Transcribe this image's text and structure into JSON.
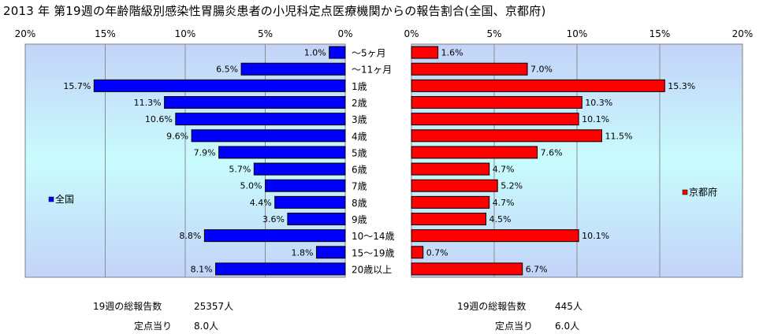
{
  "title": "2013 年 第19週の年齢階級別感染性胃腸炎患者の小児科定点医療機関からの報告割合(全国、京都府)",
  "chart_data": {
    "type": "bar",
    "categories": [
      "～5ヶ月",
      "～11ヶ月",
      "1歳",
      "2歳",
      "3歳",
      "4歳",
      "5歳",
      "6歳",
      "7歳",
      "8歳",
      "9歳",
      "10～14歳",
      "15～19歳",
      "20歳以上"
    ],
    "series": [
      {
        "name": "全国",
        "color": "#0000ff",
        "values": [
          1.0,
          6.5,
          15.7,
          11.3,
          10.6,
          9.6,
          7.9,
          5.7,
          5.0,
          4.4,
          3.6,
          8.8,
          1.8,
          8.1
        ],
        "labels": [
          "1.0%",
          "6.5%",
          "15.7%",
          "11.3%",
          "10.6%",
          "9.6%",
          "7.9%",
          "5.7%",
          "5.0%",
          "4.4%",
          "3.6%",
          "8.8%",
          "1.8%",
          "8.1%"
        ]
      },
      {
        "name": "京都府",
        "color": "#ff0000",
        "values": [
          1.6,
          7.0,
          15.3,
          10.3,
          10.1,
          11.5,
          7.6,
          4.7,
          5.2,
          4.7,
          4.5,
          10.1,
          0.7,
          6.7
        ],
        "labels": [
          "1.6%",
          "7.0%",
          "15.3%",
          "10.3%",
          "10.1%",
          "11.5%",
          "7.6%",
          "4.7%",
          "5.2%",
          "4.7%",
          "4.5%",
          "10.1%",
          "0.7%",
          "6.7%"
        ]
      }
    ],
    "xlim": [
      0,
      20
    ],
    "ticks": [
      "0%",
      "5%",
      "10%",
      "15%",
      "20%"
    ],
    "left_ticks": [
      "20%",
      "15%",
      "10%",
      "5%",
      "0%"
    ],
    "grid": true
  },
  "stats": {
    "national_total_label": "19週の総報告数",
    "national_total_value": "25357人",
    "national_per_label": "定点当り",
    "national_per_value": "8.0人",
    "kyoto_total_label": "19週の総報告数",
    "kyoto_total_value": "445人",
    "kyoto_per_label": "定点当り",
    "kyoto_per_value": "6.0人"
  }
}
